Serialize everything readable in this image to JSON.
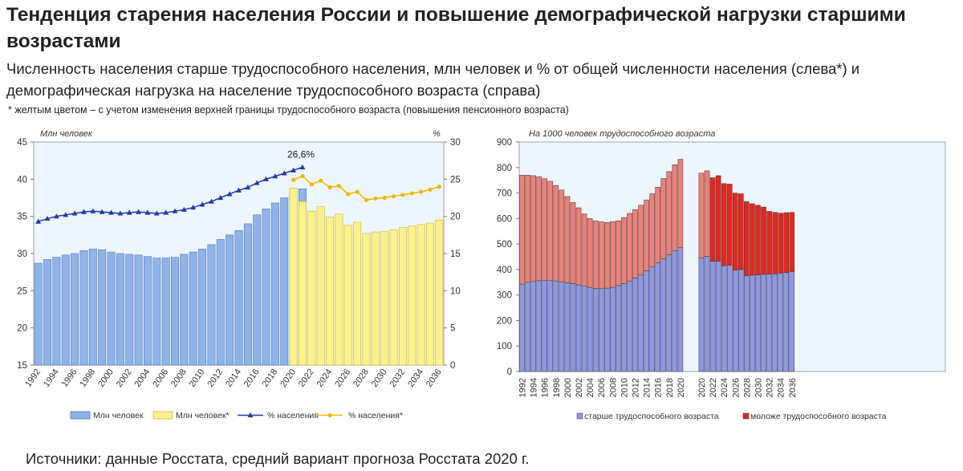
{
  "title": "Тенденция старения населения России и повышение демографической нагрузки старшими возрастами",
  "subtitle": "Численность населения старше трудоспособного населения, млн человек и % от общей численности населения (слева*) и демографическая нагрузка на население трудоспособного возраста (справа)",
  "footnote": "* желтым цветом – с учетом изменения верхней границы трудоспособного возраста (повышения пенсионного возраста)",
  "source": "Источники: данные Росстата, средний вариант прогноза Росстата 2020 г.",
  "colors": {
    "blue_bar": "#8fb4e8",
    "yellow_bar": "#fff28a",
    "blue_line": "#1f3aa8",
    "yellow_line": "#f2b705",
    "older_bar": "#8f98e4",
    "younger_bar": "#f08078",
    "younger_bar_forecast": "#e8261d",
    "plot_bg": "#eef6fd"
  },
  "chart_data": [
    {
      "type": "bar",
      "name": "left",
      "unit_left": "Млн человек",
      "unit_right": "%",
      "ylim_left": [
        15,
        45
      ],
      "ylim_right": [
        0,
        30
      ],
      "yticks_left": [
        "15",
        "20",
        "25",
        "30",
        "35",
        "40",
        "45"
      ],
      "yticks_right": [
        "0",
        "5",
        "10",
        "15",
        "20",
        "25",
        "30"
      ],
      "xtick_labels": [
        "1992",
        "1994",
        "1996",
        "1998",
        "2000",
        "2002",
        "2004",
        "2006",
        "2008",
        "2010",
        "2012",
        "2014",
        "2016",
        "2018",
        "2020",
        "2022",
        "2024",
        "2026",
        "2028",
        "2030",
        "2032",
        "2034",
        "2036"
      ],
      "annotation": "26,6%",
      "series": [
        {
          "name": "Млн человек",
          "kind": "bar",
          "axis": "left",
          "x": [
            1992,
            1993,
            1994,
            1995,
            1996,
            1997,
            1998,
            1999,
            2000,
            2001,
            2002,
            2003,
            2004,
            2005,
            2006,
            2007,
            2008,
            2009,
            2010,
            2011,
            2012,
            2013,
            2014,
            2015,
            2016,
            2017,
            2018,
            2019,
            2020,
            2021
          ],
          "values": [
            28.7,
            29.2,
            29.5,
            29.8,
            30.0,
            30.4,
            30.6,
            30.5,
            30.2,
            30.0,
            29.9,
            29.8,
            29.6,
            29.4,
            29.4,
            29.5,
            29.9,
            30.2,
            30.6,
            31.2,
            31.9,
            32.5,
            33.1,
            34.0,
            35.2,
            36.0,
            36.8,
            37.5,
            38.1,
            38.7
          ]
        },
        {
          "name": "Млн человек*",
          "kind": "bar",
          "axis": "left",
          "x": [
            2020,
            2021,
            2022,
            2023,
            2024,
            2025,
            2026,
            2027,
            2028,
            2029,
            2030,
            2031,
            2032,
            2033,
            2034,
            2035,
            2036
          ],
          "values": [
            38.8,
            37.0,
            35.7,
            36.3,
            34.9,
            35.3,
            33.8,
            34.2,
            32.7,
            32.9,
            33.0,
            33.2,
            33.5,
            33.7,
            33.9,
            34.1,
            34.5
          ]
        },
        {
          "name": "% населения",
          "kind": "line",
          "axis": "right",
          "x": [
            1992,
            1993,
            1994,
            1995,
            1996,
            1997,
            1998,
            1999,
            2000,
            2001,
            2002,
            2003,
            2004,
            2005,
            2006,
            2007,
            2008,
            2009,
            2010,
            2011,
            2012,
            2013,
            2014,
            2015,
            2016,
            2017,
            2018,
            2019,
            2020,
            2021
          ],
          "values": [
            19.3,
            19.7,
            20.0,
            20.2,
            20.4,
            20.6,
            20.7,
            20.6,
            20.5,
            20.4,
            20.5,
            20.6,
            20.5,
            20.4,
            20.5,
            20.7,
            20.9,
            21.2,
            21.6,
            22.0,
            22.5,
            23.0,
            23.5,
            23.9,
            24.5,
            25.0,
            25.4,
            25.8,
            26.2,
            26.6
          ]
        },
        {
          "name": "% населения*",
          "kind": "line",
          "axis": "right",
          "x": [
            2020,
            2021,
            2022,
            2023,
            2024,
            2025,
            2026,
            2027,
            2028,
            2029,
            2030,
            2031,
            2032,
            2033,
            2034,
            2035,
            2036
          ],
          "values": [
            24.9,
            25.4,
            24.3,
            24.8,
            23.9,
            24.1,
            23.0,
            23.3,
            22.2,
            22.4,
            22.5,
            22.7,
            22.9,
            23.1,
            23.3,
            23.6,
            24.0
          ]
        }
      ]
    },
    {
      "type": "bar",
      "name": "right",
      "stacked": true,
      "unit": "На 1000 человек трудоспособного возраста",
      "ylim": [
        0,
        900
      ],
      "yticks": [
        "0",
        "100",
        "200",
        "300",
        "400",
        "500",
        "600",
        "700",
        "800",
        "900"
      ],
      "xtick_labels_hist": [
        "1992",
        "1994",
        "1996",
        "1998",
        "2000",
        "2002",
        "2004",
        "2006",
        "2008",
        "2010",
        "2012",
        "2014",
        "2016",
        "2018",
        "2020"
      ],
      "xtick_labels_forecast": [
        "2020",
        "2022",
        "2024",
        "2026",
        "2028",
        "2030",
        "2032",
        "2034",
        "2036"
      ],
      "groups": [
        {
          "x": [
            1992,
            1993,
            1994,
            1995,
            1996,
            1997,
            1998,
            1999,
            2000,
            2001,
            2002,
            2003,
            2004,
            2005,
            2006,
            2007,
            2008,
            2009,
            2010,
            2011,
            2012,
            2013,
            2014,
            2015,
            2016,
            2017,
            2018,
            2019,
            2020
          ],
          "series": [
            {
              "name": "старше трудоспособного возраста",
              "values": [
                343,
                350,
                353,
                356,
                358,
                358,
                355,
                352,
                348,
                345,
                340,
                336,
                330,
                326,
                325,
                327,
                330,
                337,
                345,
                355,
                367,
                380,
                395,
                410,
                427,
                442,
                458,
                473,
                487
              ]
            },
            {
              "name": "моложе трудоспособного возраста",
              "values": [
                427,
                420,
                415,
                408,
                398,
                388,
                375,
                360,
                338,
                318,
                302,
                282,
                270,
                265,
                262,
                258,
                258,
                254,
                259,
                265,
                268,
                272,
                278,
                287,
                296,
                315,
                326,
                338,
                345
              ]
            }
          ]
        },
        {
          "x": [
            2020,
            2021,
            2022,
            2023,
            2024,
            2025,
            2026,
            2027,
            2028,
            2029,
            2030,
            2031,
            2032,
            2033,
            2034,
            2035,
            2036
          ],
          "series": [
            {
              "name": "старше трудоспособного возраста",
              "values": [
                445,
                452,
                432,
                433,
                415,
                417,
                398,
                400,
                376,
                378,
                379,
                381,
                382,
                383,
                386,
                388,
                392
              ]
            },
            {
              "name": "моложе трудоспособного возраста",
              "values": [
                333,
                335,
                328,
                335,
                322,
                318,
                302,
                297,
                290,
                280,
                273,
                264,
                246,
                241,
                235,
                235,
                232
              ]
            }
          ]
        }
      ]
    }
  ]
}
